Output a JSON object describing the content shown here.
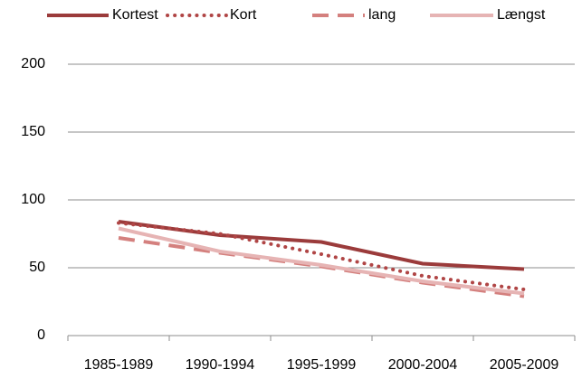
{
  "chart_data": {
    "type": "line",
    "categories": [
      "1985-1989",
      "1990-1994",
      "1995-1999",
      "2000-2004",
      "2005-2009"
    ],
    "series": [
      {
        "name": "Kortest",
        "color": "#9b3b3b",
        "dash": "solid",
        "values": [
          84,
          74,
          69,
          53,
          49
        ]
      },
      {
        "name": "Kort",
        "color": "#b04545",
        "dash": "dotted",
        "values": [
          83,
          75,
          60,
          44,
          34
        ]
      },
      {
        "name": "lang",
        "color": "#d4807e",
        "dash": "dashed",
        "values": [
          72,
          61,
          51,
          39,
          29
        ]
      },
      {
        "name": "Længst",
        "color": "#e6b4b4",
        "dash": "solid",
        "values": [
          79,
          62,
          52,
          40,
          31
        ]
      }
    ],
    "ylim": [
      0,
      200
    ],
    "yticks": [
      0,
      50,
      100,
      150,
      200
    ],
    "grid": true,
    "legend": "top"
  }
}
